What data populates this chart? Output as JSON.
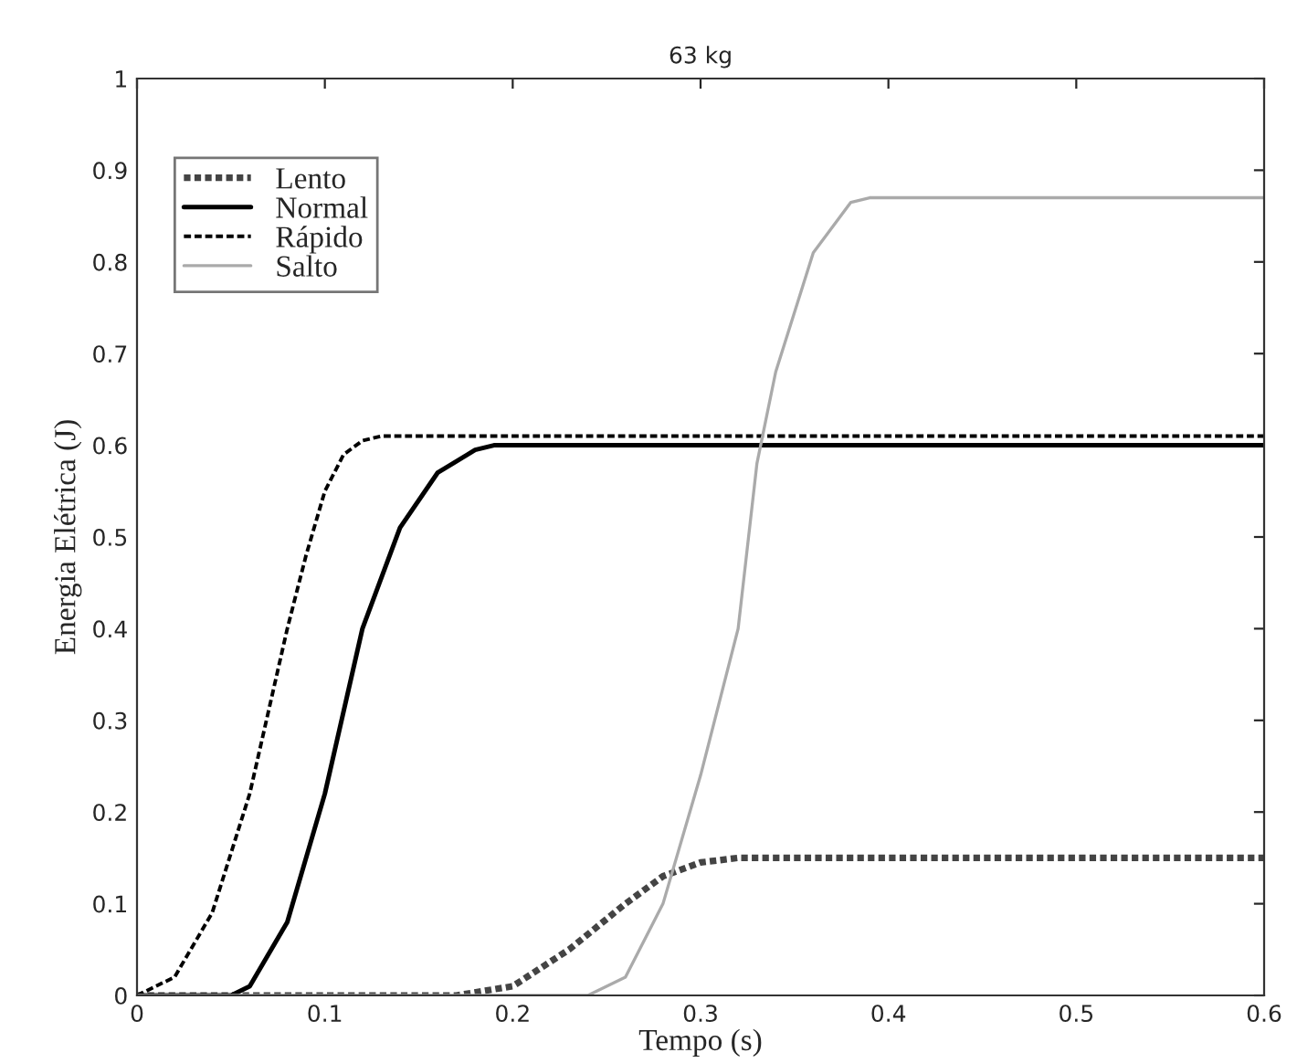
{
  "chart_data": {
    "type": "line",
    "title": "63 kg",
    "xlabel": "Tempo (s)",
    "ylabel": "Energia Elétrica (J)",
    "xlim": [
      0,
      0.6
    ],
    "xticks": [
      0,
      0.1,
      0.2,
      0.3,
      0.4,
      0.5,
      0.6
    ],
    "ylim": [
      0,
      1
    ],
    "yticks": [
      0,
      0.1,
      0.2,
      0.3,
      0.4,
      0.5,
      0.6,
      0.7,
      0.8,
      0.9,
      1
    ],
    "grid": false,
    "legend": "top left",
    "series": [
      {
        "name": "Lento",
        "color": "#444444",
        "line_style": "dotted",
        "x": [
          0,
          0.17,
          0.2,
          0.23,
          0.26,
          0.28,
          0.3,
          0.32,
          0.6
        ],
        "values": [
          0,
          0,
          0.01,
          0.05,
          0.1,
          0.13,
          0.145,
          0.15,
          0.15
        ]
      },
      {
        "name": "Normal",
        "color": "#000000",
        "line_style": "solid",
        "x": [
          0,
          0.05,
          0.06,
          0.08,
          0.1,
          0.12,
          0.14,
          0.16,
          0.18,
          0.19,
          0.6
        ],
        "values": [
          0,
          0,
          0.01,
          0.08,
          0.22,
          0.4,
          0.51,
          0.57,
          0.595,
          0.6,
          0.6
        ]
      },
      {
        "name": "Rápido",
        "color": "#000000",
        "line_style": "dashed",
        "x": [
          0,
          0.02,
          0.04,
          0.06,
          0.08,
          0.09,
          0.1,
          0.11,
          0.12,
          0.13,
          0.6
        ],
        "values": [
          0,
          0.02,
          0.09,
          0.22,
          0.4,
          0.48,
          0.55,
          0.59,
          0.605,
          0.61,
          0.61
        ]
      },
      {
        "name": "Salto",
        "color": "#aaaaaa",
        "line_style": "solid",
        "x": [
          0,
          0.24,
          0.26,
          0.28,
          0.3,
          0.32,
          0.33,
          0.34,
          0.36,
          0.38,
          0.39,
          0.6
        ],
        "values": [
          0,
          0,
          0.02,
          0.1,
          0.24,
          0.4,
          0.58,
          0.68,
          0.81,
          0.865,
          0.87,
          0.87
        ]
      }
    ]
  }
}
